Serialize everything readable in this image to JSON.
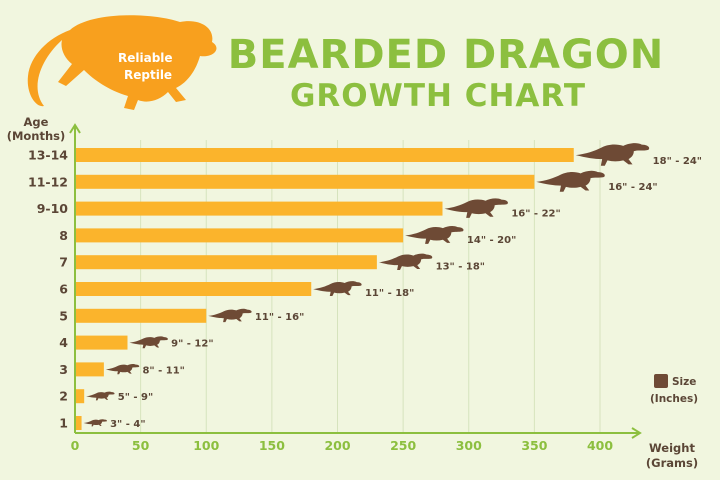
{
  "title_line1": "BEARDED DRAGON",
  "title_line2": "GROWTH CHART",
  "logo": {
    "line1": "Reliable",
    "line2": "Reptile"
  },
  "colors": {
    "background": "#f1f6df",
    "bar": "#fbb42c",
    "title": "#8cbf3f",
    "axis": "#8cbf3f",
    "text": "#5b4636",
    "lizard": "#6e4a35",
    "logo": "#f8a01e"
  },
  "legend": {
    "label": "Size",
    "sublabel": "(Inches)"
  },
  "chart_data": {
    "type": "bar",
    "orientation": "horizontal",
    "ylabel": "Age",
    "ylabel_unit": "(Months)",
    "xlabel": "Weight",
    "xlabel_unit": "(Grams)",
    "xlim": [
      0,
      450
    ],
    "xticks": [
      "0",
      "50",
      "100",
      "150",
      "200",
      "250",
      "300",
      "350",
      "400"
    ],
    "grid": true,
    "categories": [
      "1",
      "2",
      "3",
      "4",
      "5",
      "6",
      "7",
      "8",
      "9-10",
      "11-12",
      "13-14"
    ],
    "values": [
      5,
      7,
      22,
      40,
      100,
      180,
      230,
      250,
      280,
      350,
      380
    ],
    "size_labels": [
      "3\" - 4\"",
      "5\" - 9\"",
      "8\" - 11\"",
      "9\" - 12\"",
      "11\" - 16\"",
      "11\" - 18\"",
      "13\" - 18\"",
      "14\" - 20\"",
      "16\" - 22\"",
      "16\" - 24\"",
      "18\" - 24\""
    ]
  }
}
